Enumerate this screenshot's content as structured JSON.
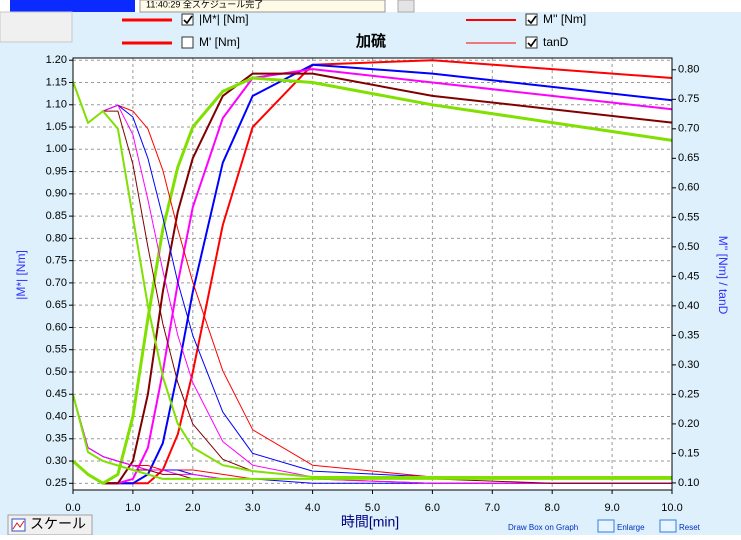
{
  "chart_data": {
    "type": "line",
    "title": "加硫",
    "x_label": "時間[min]",
    "y_label": "|M*| [Nm]",
    "y2_label": "M'' [Nm] / tanD",
    "xlim": [
      0,
      10
    ],
    "ylim": [
      0.235,
      1.205
    ],
    "y2lim": [
      0.088,
      0.82
    ],
    "grid": true,
    "xticks": [
      {
        "value": 0,
        "label": "0.0"
      },
      {
        "value": 1,
        "label": "1.0"
      },
      {
        "value": 2,
        "label": "2.0"
      },
      {
        "value": 3,
        "label": "3.0"
      },
      {
        "value": 4,
        "label": "4.0"
      },
      {
        "value": 5,
        "label": "5.0"
      },
      {
        "value": 6,
        "label": "6.0"
      },
      {
        "value": 7,
        "label": "7.0"
      },
      {
        "value": 8,
        "label": "8.0"
      },
      {
        "value": 9,
        "label": "9.0"
      },
      {
        "value": 10,
        "label": "10.0"
      }
    ],
    "yticks": [
      {
        "value": 1.2,
        "label": "1.20"
      },
      1.15,
      {
        "value": 1.1,
        "label": "1.10"
      },
      1.05,
      {
        "value": 1,
        "label": "1.00"
      },
      0.95,
      {
        "value": 0.9,
        "label": "0.90"
      },
      0.85,
      {
        "value": 0.8,
        "label": "0.80"
      },
      0.75,
      {
        "value": 0.7,
        "label": "0.70"
      },
      0.65,
      {
        "value": 0.6,
        "label": "0.60"
      },
      0.55,
      {
        "value": 0.5,
        "label": "0.50"
      },
      0.45,
      {
        "value": 0.4,
        "label": "0.40"
      },
      0.35,
      {
        "value": 0.3,
        "label": "0.30"
      },
      0.25
    ],
    "y2ticks": [
      {
        "value": 0.8,
        "label": "0.80"
      },
      0.75,
      {
        "value": 0.7,
        "label": "0.70"
      },
      0.65,
      {
        "value": 0.6,
        "label": "0.60"
      },
      0.55,
      {
        "value": 0.5,
        "label": "0.50"
      },
      0.45,
      {
        "value": 0.4,
        "label": "0.40"
      },
      0.35,
      {
        "value": 0.3,
        "label": "0.30"
      },
      0.25,
      {
        "value": 0.2,
        "label": "0.20"
      },
      0.15,
      {
        "value": 0.1,
        "label": "0.10"
      }
    ],
    "legend": [
      {
        "label": "|M*| [Nm]",
        "checked": true,
        "color": "#ff0000",
        "width": 3
      },
      {
        "label": "M' [Nm]",
        "checked": false,
        "color": "#ff0000",
        "width": 3
      },
      {
        "label": "M'' [Nm]",
        "checked": true,
        "color": "#ff0000",
        "width": 2
      },
      {
        "label": "tanD",
        "checked": true,
        "color": "#ff0000",
        "width": 1
      }
    ],
    "x": [
      0,
      0.25,
      0.5,
      0.75,
      1,
      1.25,
      1.5,
      1.75,
      2,
      2.5,
      3,
      4,
      6,
      8,
      10
    ],
    "series": [
      {
        "color": "#ff0000",
        "axis": "y",
        "width": 2,
        "values": [
          0.3,
          0.27,
          0.25,
          0.25,
          0.25,
          0.25,
          0.28,
          0.36,
          0.5,
          0.83,
          1.05,
          1.19,
          1.2,
          1.18,
          1.16
        ]
      },
      {
        "color": "#0000ff",
        "axis": "y",
        "width": 2,
        "values": [
          0.3,
          0.27,
          0.25,
          0.25,
          0.25,
          0.27,
          0.34,
          0.5,
          0.68,
          0.97,
          1.12,
          1.19,
          1.17,
          1.14,
          1.11
        ]
      },
      {
        "color": "#ff00ff",
        "axis": "y",
        "width": 2,
        "values": [
          0.3,
          0.27,
          0.25,
          0.25,
          0.26,
          0.33,
          0.5,
          0.7,
          0.87,
          1.07,
          1.16,
          1.18,
          1.15,
          1.12,
          1.09
        ]
      },
      {
        "color": "#800000",
        "axis": "y",
        "width": 2,
        "values": [
          0.3,
          0.27,
          0.25,
          0.25,
          0.3,
          0.45,
          0.68,
          0.86,
          0.98,
          1.12,
          1.17,
          1.17,
          1.12,
          1.09,
          1.06
        ]
      },
      {
        "color": "#80e000",
        "axis": "y",
        "width": 3,
        "values": [
          0.3,
          0.27,
          0.25,
          0.27,
          0.4,
          0.62,
          0.82,
          0.96,
          1.05,
          1.13,
          1.16,
          1.15,
          1.1,
          1.06,
          1.02
        ]
      },
      {
        "color": "#ff0000",
        "axis": "y",
        "width": 1,
        "values": [
          0.45,
          0.33,
          0.31,
          0.3,
          0.29,
          0.29,
          0.28,
          0.28,
          0.28,
          0.27,
          0.26,
          0.26,
          0.25,
          0.25,
          0.25
        ]
      },
      {
        "color": "#0000ff",
        "axis": "y",
        "width": 1,
        "values": [
          0.45,
          0.33,
          0.31,
          0.3,
          0.29,
          0.28,
          0.28,
          0.28,
          0.27,
          0.26,
          0.26,
          0.25,
          0.25,
          0.25,
          0.25
        ]
      },
      {
        "color": "#ff00ff",
        "axis": "y",
        "width": 1,
        "values": [
          0.45,
          0.33,
          0.31,
          0.3,
          0.29,
          0.28,
          0.28,
          0.27,
          0.27,
          0.26,
          0.26,
          0.26,
          0.25,
          0.25,
          0.25
        ]
      },
      {
        "color": "#800000",
        "axis": "y",
        "width": 1,
        "values": [
          0.45,
          0.32,
          0.3,
          0.29,
          0.28,
          0.28,
          0.27,
          0.27,
          0.26,
          0.26,
          0.26,
          0.26,
          0.26,
          0.25,
          0.25
        ]
      },
      {
        "color": "#80e000",
        "axis": "y",
        "width": 2,
        "values": [
          0.45,
          0.32,
          0.3,
          0.29,
          0.28,
          0.27,
          0.26,
          0.26,
          0.26,
          0.26,
          0.26,
          0.26,
          0.26,
          0.26,
          0.26
        ]
      },
      {
        "color": "#ff0000",
        "axis": "y2",
        "width": 1,
        "values": [
          0.78,
          0.71,
          0.73,
          0.74,
          0.73,
          0.7,
          0.63,
          0.53,
          0.44,
          0.29,
          0.19,
          0.13,
          0.11,
          0.11,
          0.11
        ]
      },
      {
        "color": "#0000ff",
        "axis": "y2",
        "width": 1,
        "values": [
          0.78,
          0.71,
          0.73,
          0.74,
          0.72,
          0.65,
          0.55,
          0.44,
          0.35,
          0.22,
          0.15,
          0.12,
          0.11,
          0.11,
          0.11
        ]
      },
      {
        "color": "#ff00ff",
        "axis": "y2",
        "width": 1,
        "values": [
          0.78,
          0.71,
          0.73,
          0.74,
          0.69,
          0.58,
          0.46,
          0.35,
          0.27,
          0.17,
          0.13,
          0.11,
          0.11,
          0.11,
          0.11
        ]
      },
      {
        "color": "#800000",
        "axis": "y2",
        "width": 1,
        "values": [
          0.78,
          0.71,
          0.73,
          0.73,
          0.64,
          0.5,
          0.37,
          0.27,
          0.2,
          0.14,
          0.12,
          0.11,
          0.11,
          0.11,
          0.11
        ]
      },
      {
        "color": "#80e000",
        "axis": "y2",
        "width": 2,
        "values": [
          0.78,
          0.71,
          0.73,
          0.7,
          0.55,
          0.4,
          0.28,
          0.2,
          0.16,
          0.13,
          0.12,
          0.11,
          0.11,
          0.11,
          0.11
        ]
      }
    ]
  },
  "ui": {
    "status": "11:40:29  全スケジュール完了",
    "scale_button": "スケール",
    "draw_box": "Draw Box on  Graph",
    "enlarge": "Enlarge",
    "reset": "Reset"
  }
}
